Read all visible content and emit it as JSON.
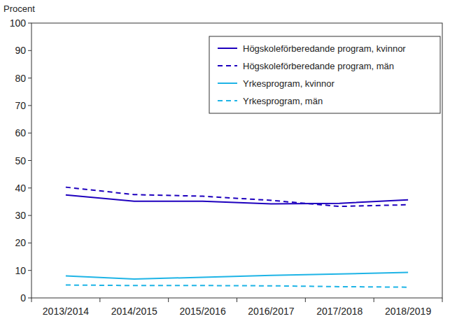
{
  "chart_data": {
    "type": "line",
    "ylabel": "Procent",
    "categories": [
      "2013/2014",
      "2014/2015",
      "2015/2016",
      "2016/2017",
      "2017/2018",
      "2018/2019"
    ],
    "series": [
      {
        "name": "Högskoleförberedande program, kvinnor",
        "color": "#1e00be",
        "line_style": "solid",
        "values": [
          37.5,
          35.2,
          35.2,
          34.2,
          34.4,
          35.7
        ]
      },
      {
        "name": "Högskoleförberedande program, män",
        "color": "#1e00be",
        "line_style": "dashed",
        "values": [
          40.3,
          37.6,
          37.0,
          35.5,
          33.3,
          33.9
        ]
      },
      {
        "name": "Yrkesprogram, kvinnor",
        "color": "#1eb4e6",
        "line_style": "solid",
        "values": [
          8.0,
          6.9,
          7.5,
          8.2,
          8.7,
          9.3
        ]
      },
      {
        "name": "Yrkesprogram, män",
        "color": "#1eb4e6",
        "line_style": "dashed",
        "values": [
          4.7,
          4.5,
          4.5,
          4.4,
          4.1,
          3.9
        ]
      }
    ],
    "ylim": [
      0,
      100
    ],
    "yticks": [
      0,
      10,
      20,
      30,
      40,
      50,
      60,
      70,
      80,
      90,
      100
    ],
    "grid": false,
    "legend": "upper right"
  }
}
